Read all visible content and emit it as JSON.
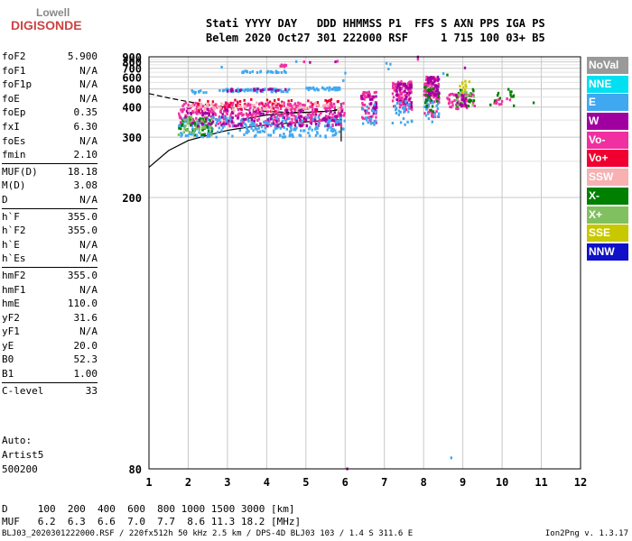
{
  "logo": {
    "line1": "Lowell",
    "line2": "DIGISONDE"
  },
  "header": {
    "line1": "Stati YYYY DAY   DDD HHMMSS P1  FFS S AXN PPS IGA PS",
    "line2": "Belem 2020 Oct27 301 222000 RSF     1 715 100 03+ B5"
  },
  "params": [
    [
      {
        "k": "foF2",
        "v": "5.900"
      },
      {
        "k": "foF1",
        "v": "N/A"
      },
      {
        "k": "foF1p",
        "v": "N/A"
      },
      {
        "k": "foE",
        "v": "N/A"
      },
      {
        "k": "foEp",
        "v": "0.35"
      },
      {
        "k": "fxI",
        "v": "6.30"
      },
      {
        "k": "foEs",
        "v": "N/A"
      },
      {
        "k": "fmin",
        "v": "2.10"
      }
    ],
    [
      {
        "k": "MUF(D)",
        "v": "18.18"
      },
      {
        "k": "M(D)",
        "v": "3.08"
      },
      {
        "k": "D",
        "v": "N/A"
      }
    ],
    [
      {
        "k": "h`F",
        "v": "355.0"
      },
      {
        "k": "h`F2",
        "v": "355.0"
      },
      {
        "k": "h`E",
        "v": "N/A"
      },
      {
        "k": "h`Es",
        "v": "N/A"
      }
    ],
    [
      {
        "k": "hmF2",
        "v": "355.0"
      },
      {
        "k": "hmF1",
        "v": "N/A"
      },
      {
        "k": "hmE",
        "v": "110.0"
      },
      {
        "k": "yF2",
        "v": "31.6"
      },
      {
        "k": "yF1",
        "v": "N/A"
      },
      {
        "k": "yE",
        "v": "20.0"
      },
      {
        "k": "B0",
        "v": "52.3"
      },
      {
        "k": "B1",
        "v": "1.00"
      }
    ],
    [
      {
        "k": "C-level",
        "v": "33"
      }
    ]
  ],
  "auto": {
    "l1": "Auto:",
    "l2": "Artist5",
    "l3": "500200"
  },
  "legend": [
    {
      "label": "NoVal",
      "color": "#999999"
    },
    {
      "label": "NNE",
      "color": "#00e0f0"
    },
    {
      "label": "E",
      "color": "#40a8f0"
    },
    {
      "label": "W",
      "color": "#a000a0"
    },
    {
      "label": "Vo-",
      "color": "#f030a0"
    },
    {
      "label": "Vo+",
      "color": "#f00030"
    },
    {
      "label": "SSW",
      "color": "#f8b0b0"
    },
    {
      "label": "X-",
      "color": "#008000"
    },
    {
      "label": "X+",
      "color": "#80c060"
    },
    {
      "label": "SSE",
      "color": "#c8c800"
    },
    {
      "label": "NNW",
      "color": "#1010c8"
    }
  ],
  "distance_table": {
    "d_line": "D     100  200  400  600  800 1000 1500 3000 [km]",
    "muf_line": "MUF   6.2  6.3  6.6  7.0  7.7  8.6 11.3 18.2 [MHz]"
  },
  "footer": {
    "left": "BLJ03_2020301222000.RSF / 220fx512h 50 kHz 2.5 km / DPS-4D BLJ03 103 / 1.4 S 311.6 E",
    "right": "Ion2Png v. 1.3.17"
  },
  "chart_data": {
    "type": "scatter",
    "title": "",
    "xlabel": "",
    "ylabel": "",
    "xlim": [
      1,
      12
    ],
    "ylim": [
      80,
      900
    ],
    "y_scale": "reciprocal",
    "grid": true,
    "x_ticks": [
      "1",
      "2",
      "3",
      "4",
      "5",
      "6",
      "7",
      "8",
      "9",
      "10",
      "11",
      "12"
    ],
    "y_ticks": [
      "80",
      "200",
      "300",
      "400",
      "500",
      "600",
      "700",
      "800",
      "900"
    ],
    "traces": [
      {
        "style": "dashed",
        "color": "#000000",
        "points": [
          [
            1.0,
            470
          ],
          [
            1.5,
            445
          ],
          [
            2.0,
            425
          ],
          [
            2.5,
            410
          ],
          [
            3.0,
            398
          ],
          [
            3.5,
            388
          ],
          [
            4.0,
            382
          ],
          [
            4.5,
            378
          ],
          [
            5.0,
            378
          ],
          [
            5.5,
            382
          ],
          [
            5.9,
            392
          ]
        ]
      },
      {
        "style": "solid",
        "color": "#000000",
        "points": [
          [
            3.5,
            355
          ],
          [
            4.0,
            368
          ],
          [
            4.5,
            374
          ],
          [
            5.0,
            378
          ],
          [
            5.5,
            382
          ],
          [
            5.9,
            388
          ]
        ]
      },
      {
        "style": "solid",
        "color": "#000000",
        "points": [
          [
            1.0,
            240
          ],
          [
            1.5,
            270
          ],
          [
            2.0,
            292
          ],
          [
            2.5,
            305
          ],
          [
            3.0,
            318
          ],
          [
            3.5,
            327
          ],
          [
            4.0,
            334
          ],
          [
            4.5,
            339
          ],
          [
            5.0,
            344
          ],
          [
            5.5,
            348
          ],
          [
            5.9,
            352
          ]
        ]
      },
      {
        "style": "solid",
        "color": "#000000",
        "points": [
          [
            5.9,
            290
          ],
          [
            5.9,
            420
          ]
        ]
      }
    ],
    "clusters": [
      {
        "f": [
          1.75,
          6.0
        ],
        "h": [
          330,
          420
        ],
        "c": "Vo-",
        "n": 420
      },
      {
        "f": [
          1.75,
          6.0
        ],
        "h": [
          300,
          360
        ],
        "c": "E",
        "n": 260
      },
      {
        "f": [
          1.75,
          2.6
        ],
        "h": [
          305,
          365
        ],
        "c": "X-",
        "n": 40
      },
      {
        "f": [
          1.75,
          2.6
        ],
        "h": [
          305,
          365
        ],
        "c": "X+",
        "n": 40
      },
      {
        "f": [
          1.8,
          6.0
        ],
        "h": [
          330,
          390
        ],
        "c": "W",
        "n": 120
      },
      {
        "f": [
          2.2,
          5.9
        ],
        "h": [
          380,
          440
        ],
        "c": "Vo+",
        "n": 60
      },
      {
        "f": [
          2.0,
          5.9
        ],
        "h": [
          380,
          420
        ],
        "c": "SSW",
        "n": 60
      },
      {
        "f": [
          2.8,
          4.6
        ],
        "h": [
          480,
          500
        ],
        "c": "E",
        "n": 60
      },
      {
        "f": [
          3.0,
          4.5
        ],
        "h": [
          485,
          500
        ],
        "c": "W",
        "n": 20
      },
      {
        "f": [
          5.0,
          5.9
        ],
        "h": [
          490,
          510
        ],
        "c": "E",
        "n": 30
      },
      {
        "f": [
          2.0,
          2.5
        ],
        "h": [
          470,
          490
        ],
        "c": "E",
        "n": 10
      },
      {
        "f": [
          3.3,
          4.5
        ],
        "h": [
          645,
          665
        ],
        "c": "E",
        "n": 25
      },
      {
        "f": [
          4.3,
          4.5
        ],
        "h": [
          720,
          750
        ],
        "c": "Vo-",
        "n": 10
      },
      {
        "f": [
          6.4,
          6.8
        ],
        "h": [
          340,
          480
        ],
        "c": "Vo-",
        "n": 60
      },
      {
        "f": [
          6.4,
          6.8
        ],
        "h": [
          360,
          470
        ],
        "c": "W",
        "n": 20
      },
      {
        "f": [
          6.4,
          6.8
        ],
        "h": [
          330,
          420
        ],
        "c": "E",
        "n": 20
      },
      {
        "f": [
          7.2,
          7.7
        ],
        "h": [
          380,
          560
        ],
        "c": "Vo-",
        "n": 90
      },
      {
        "f": [
          7.3,
          7.7
        ],
        "h": [
          400,
          540
        ],
        "c": "W",
        "n": 40
      },
      {
        "f": [
          7.2,
          7.7
        ],
        "h": [
          330,
          430
        ],
        "c": "E",
        "n": 30
      },
      {
        "f": [
          8.0,
          8.4
        ],
        "h": [
          360,
          600
        ],
        "c": "Vo-",
        "n": 90
      },
      {
        "f": [
          8.1,
          8.4
        ],
        "h": [
          440,
          600
        ],
        "c": "W",
        "n": 50
      },
      {
        "f": [
          8.0,
          8.4
        ],
        "h": [
          340,
          440
        ],
        "c": "E",
        "n": 25
      },
      {
        "f": [
          8.0,
          8.4
        ],
        "h": [
          380,
          520
        ],
        "c": "X-",
        "n": 20
      },
      {
        "f": [
          8.6,
          9.3
        ],
        "h": [
          390,
          470
        ],
        "c": "Vo-",
        "n": 60
      },
      {
        "f": [
          8.8,
          9.3
        ],
        "h": [
          400,
          500
        ],
        "c": "X-",
        "n": 20
      },
      {
        "f": [
          8.8,
          9.3
        ],
        "h": [
          400,
          480
        ],
        "c": "X+",
        "n": 15
      },
      {
        "f": [
          8.8,
          9.1
        ],
        "h": [
          400,
          460
        ],
        "c": "W",
        "n": 15
      },
      {
        "f": [
          9.8,
          10.2
        ],
        "h": [
          410,
          440
        ],
        "c": "Vo-",
        "n": 10
      },
      {
        "f": [
          9.8,
          10.3
        ],
        "h": [
          400,
          500
        ],
        "c": "X-",
        "n": 12
      },
      {
        "f": [
          8.9,
          9.2
        ],
        "h": [
          480,
          560
        ],
        "c": "SSE",
        "n": 10
      }
    ],
    "scattered_points": [
      {
        "f": 2.85,
        "h": 715,
        "c": "E"
      },
      {
        "f": 4.75,
        "h": 805,
        "c": "E"
      },
      {
        "f": 4.95,
        "h": 800,
        "c": "Vo-"
      },
      {
        "f": 5.1,
        "h": 790,
        "c": "W"
      },
      {
        "f": 5.75,
        "h": 800,
        "c": "W"
      },
      {
        "f": 5.8,
        "h": 810,
        "c": "Vo-"
      },
      {
        "f": 7.05,
        "h": 775,
        "c": "E"
      },
      {
        "f": 7.15,
        "h": 760,
        "c": "E"
      },
      {
        "f": 7.1,
        "h": 690,
        "c": "E"
      },
      {
        "f": 7.85,
        "h": 895,
        "c": "W"
      },
      {
        "f": 7.85,
        "h": 845,
        "c": "Vo-"
      },
      {
        "f": 8.5,
        "h": 635,
        "c": "E"
      },
      {
        "f": 8.6,
        "h": 620,
        "c": "X-"
      },
      {
        "f": 9.05,
        "h": 705,
        "c": "W"
      },
      {
        "f": 6.05,
        "h": 80,
        "c": "W"
      },
      {
        "f": 8.7,
        "h": 82,
        "c": "E"
      },
      {
        "f": 10.8,
        "h": 420,
        "c": "X-"
      },
      {
        "f": 9.7,
        "h": 410,
        "c": "X-"
      },
      {
        "f": 6.0,
        "h": 640,
        "c": "E"
      },
      {
        "f": 5.95,
        "h": 565,
        "c": "E"
      }
    ]
  }
}
